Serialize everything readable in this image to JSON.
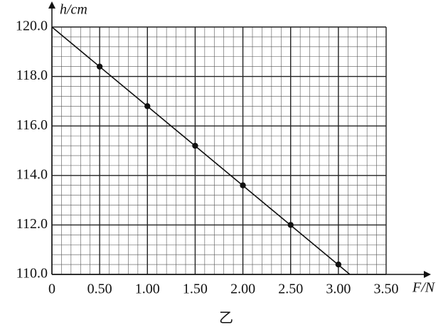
{
  "chart_data": {
    "type": "scatter",
    "x_label": "F/N",
    "y_label": "h/cm",
    "caption": "乙",
    "xlim": [
      0,
      3.5
    ],
    "ylim": [
      110,
      120
    ],
    "xticks": [
      0,
      {
        "value": 0.5,
        "label": "0.50"
      },
      {
        "value": 1,
        "label": "1.00"
      },
      {
        "value": 1.5,
        "label": "1.50"
      },
      {
        "value": 2,
        "label": "2.00"
      },
      {
        "value": 2.5,
        "label": "2.50"
      },
      {
        "value": 3,
        "label": "3.00"
      },
      {
        "value": 3.5,
        "label": "3.50"
      }
    ],
    "yticks": [
      {
        "value": 110,
        "label": "110.0"
      },
      {
        "value": 112,
        "label": "112.0"
      },
      {
        "value": 114,
        "label": "114.0"
      },
      {
        "value": 116,
        "label": "116.0"
      },
      {
        "value": 118,
        "label": "118.0"
      },
      {
        "value": 120,
        "label": "120.0"
      }
    ],
    "grid": true,
    "minor_grid": 5,
    "series": [
      {
        "type": "scatter",
        "color": "#111",
        "x": [
          0.5,
          1.0,
          1.5,
          2.0,
          2.5,
          3.0
        ],
        "values": [
          118.4,
          116.8,
          115.2,
          113.6,
          112.0,
          110.4
        ]
      },
      {
        "type": "line",
        "color": "#111",
        "x": [
          0,
          3.12
        ],
        "values": [
          120,
          110
        ]
      }
    ]
  }
}
